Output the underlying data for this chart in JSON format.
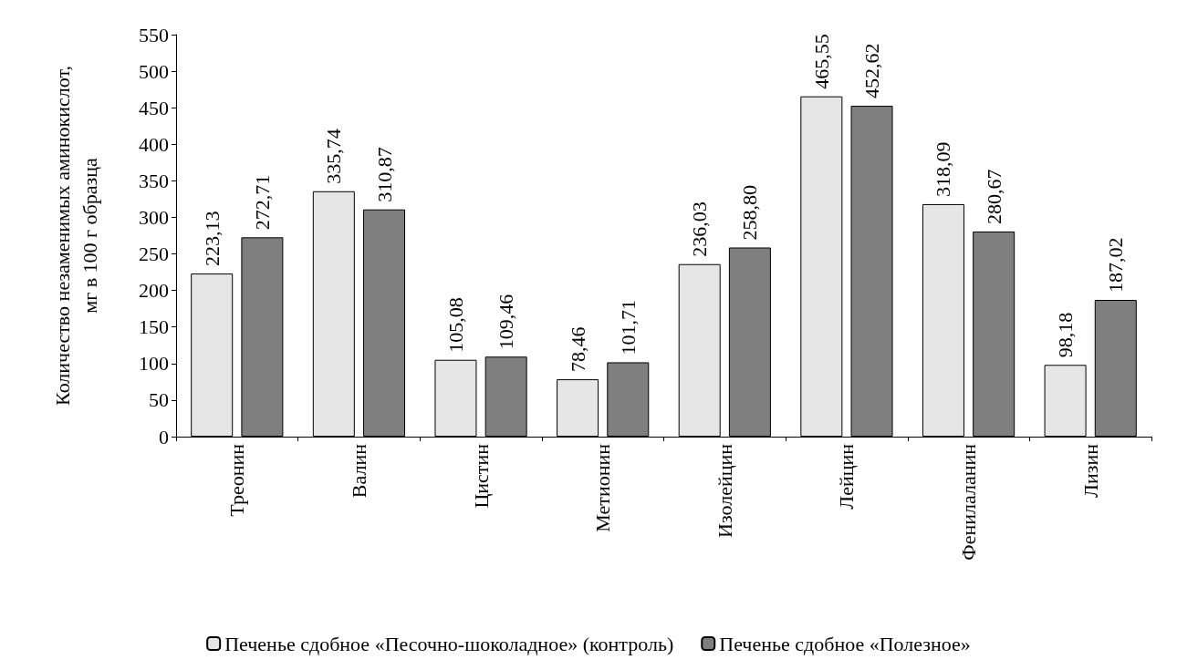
{
  "chart_data": {
    "type": "bar",
    "ylabel": "Количество незаменимых аминокислот,\nмг в 100 г образца",
    "categories": [
      "Треонин",
      "Валин",
      "Цистин",
      "Метионин",
      "Изолейцин",
      "Лейцин",
      "Фенилаланин",
      "Лизин"
    ],
    "series": [
      {
        "name": "Печенье сдобное «Песочно-шоколадное» (контроль)",
        "color": "#e6e6e6",
        "values": [
          223.13,
          335.74,
          105.08,
          78.46,
          236.03,
          465.55,
          318.09,
          98.18
        ],
        "value_labels": [
          "223,13",
          "335,74",
          "105,08",
          "78,46",
          "236,03",
          "465,55",
          "318,09",
          "98,18"
        ]
      },
      {
        "name": "Печенье сдобное «Полезное»",
        "color": "#7f7f7f",
        "values": [
          272.71,
          310.87,
          109.46,
          101.71,
          258.8,
          452.62,
          280.67,
          187.02
        ],
        "value_labels": [
          "272,71",
          "310,87",
          "109,46",
          "101,71",
          "258,80",
          "452,62",
          "280,67",
          "187,02"
        ]
      }
    ],
    "ylim": [
      0,
      550
    ],
    "yticks": [
      0,
      50,
      100,
      150,
      200,
      250,
      300,
      350,
      400,
      450,
      500,
      550
    ],
    "grid": false,
    "legend": "bottom"
  }
}
